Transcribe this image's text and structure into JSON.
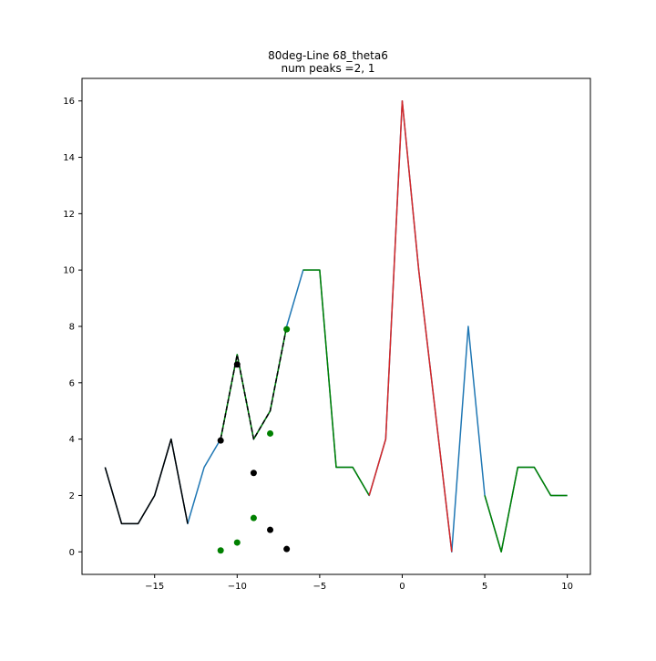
{
  "chart_data": {
    "type": "line",
    "title": "80deg-Line 68_theta6",
    "subtitle": "num peaks =2, 1",
    "xlim": [
      -19.4,
      11.4
    ],
    "ylim": [
      -0.8,
      16.8
    ],
    "x_ticks": [
      -15,
      -10,
      -5,
      0,
      5,
      10
    ],
    "x_tick_labels": [
      "−15",
      "−10",
      "−5",
      "0",
      "5",
      "10"
    ],
    "y_ticks": [
      0,
      2,
      4,
      6,
      8,
      10,
      12,
      14,
      16
    ],
    "y_tick_labels": [
      "0",
      "2",
      "4",
      "6",
      "8",
      "10",
      "12",
      "14",
      "16"
    ],
    "grid": false,
    "colors": {
      "blue": "#1f77b4",
      "green": "#008000",
      "red": "#d62728",
      "black": "#000000"
    },
    "lines": [
      {
        "color": "blue",
        "x": [
          -18,
          -17,
          -16,
          -15,
          -14,
          -13,
          -12,
          -11,
          -10,
          -9,
          -8,
          -7,
          -6,
          -5,
          -4,
          -3,
          -2,
          -1,
          0,
          1,
          2,
          3,
          4,
          5,
          6,
          7,
          8,
          9,
          10
        ],
        "y": [
          3,
          1,
          1,
          2,
          4,
          1,
          3,
          4,
          7,
          4,
          5,
          8,
          10,
          10,
          3,
          3,
          2,
          4,
          16,
          10,
          5,
          0,
          8,
          2,
          0,
          3,
          3,
          2,
          2
        ]
      },
      {
        "color": "green",
        "x": [
          -11,
          -10,
          -9,
          -8,
          -7
        ],
        "y": [
          4,
          7,
          4,
          5,
          8
        ]
      },
      {
        "color": "green",
        "x": [
          -6,
          -5,
          -4,
          -3,
          -2
        ],
        "y": [
          10,
          10,
          3,
          3,
          2
        ]
      },
      {
        "color": "green",
        "x": [
          5,
          6,
          7,
          8,
          9,
          10
        ],
        "y": [
          2,
          0,
          3,
          3,
          2,
          2
        ]
      },
      {
        "color": "red",
        "x": [
          -2,
          -1,
          0,
          1,
          2,
          3
        ],
        "y": [
          2,
          4,
          16,
          10,
          5,
          0
        ]
      },
      {
        "color": "black",
        "x": [
          -18,
          -17,
          -16,
          -15,
          -14,
          -13
        ],
        "y": [
          3,
          1,
          1,
          2,
          4,
          1
        ]
      },
      {
        "color": "black",
        "dashed": true,
        "x": [
          -11,
          -10,
          -9,
          -8,
          -7
        ],
        "y": [
          4,
          7,
          4,
          5,
          8
        ]
      }
    ],
    "scatter": [
      {
        "color": "black",
        "x": [
          -11,
          -10,
          -9,
          -8,
          -7
        ],
        "y": [
          3.95,
          6.65,
          2.8,
          0.78,
          0.1
        ]
      },
      {
        "color": "green",
        "x": [
          -11,
          -10,
          -9,
          -8,
          -7
        ],
        "y": [
          0.05,
          0.33,
          1.2,
          4.2,
          7.9
        ]
      }
    ]
  }
}
